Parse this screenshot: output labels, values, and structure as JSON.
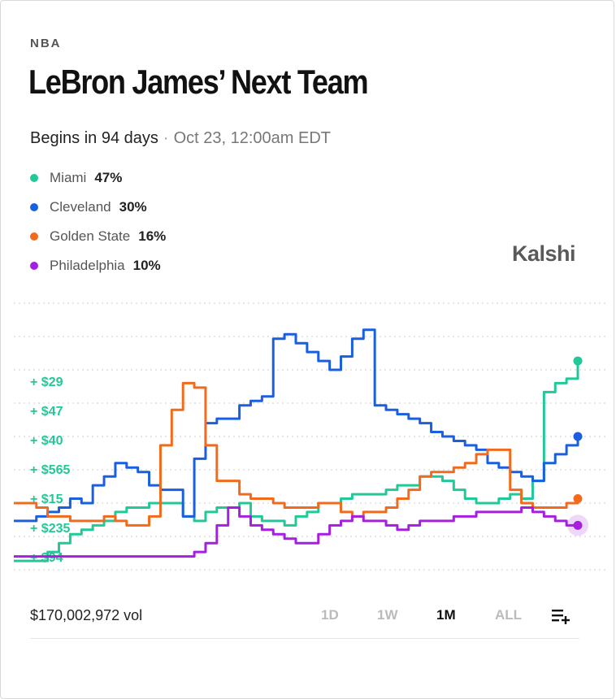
{
  "header": {
    "league": "NBA",
    "title": "LeBron James’ Next Team",
    "begins": "Begins in 94 days",
    "separator": "·",
    "date": "Oct 23, 12:00am EDT"
  },
  "legend": [
    {
      "name": "Miami",
      "pct": "47%",
      "color": "#20c997"
    },
    {
      "name": "Cleveland",
      "pct": "30%",
      "color": "#1a5fe0"
    },
    {
      "name": "Golden State",
      "pct": "16%",
      "color": "#f26b1d"
    },
    {
      "name": "Philadelphia",
      "pct": "10%",
      "color": "#a61fe0"
    }
  ],
  "brand": "Kalshi",
  "footer": {
    "volume": "$170,002,972 vol",
    "ranges": [
      "1D",
      "1W",
      "1M",
      "ALL"
    ],
    "active_range": "1M",
    "add_icon": "add-to-list-icon"
  },
  "chart_data": {
    "type": "line",
    "grid": true,
    "trade_labels": [
      "+ $29",
      "+ $47",
      "+ $40",
      "+ $565",
      "+ $15",
      "+ $235",
      "+ $94"
    ],
    "trade_label_color": "#20c997",
    "y_range": [
      0,
      60
    ],
    "x": [
      0,
      1,
      2,
      3,
      4,
      5,
      6,
      7,
      8,
      9,
      10,
      11,
      12,
      13,
      14,
      15,
      16,
      17,
      18,
      19,
      20,
      21,
      22,
      23,
      24,
      25,
      26,
      27,
      28,
      29,
      30,
      31,
      32,
      33,
      34,
      35,
      36,
      37,
      38,
      39,
      40,
      41,
      42,
      43,
      44,
      45,
      46,
      47,
      48,
      49,
      50
    ],
    "series": [
      {
        "name": "Miami",
        "color": "#20c997",
        "values": [
          2,
          2,
          2,
          4,
          6,
          8,
          9,
          10,
          11,
          13,
          14,
          14,
          15,
          15,
          15,
          12,
          11,
          13,
          14,
          14,
          15,
          12,
          11,
          11,
          10,
          12,
          13,
          15,
          15,
          16,
          17,
          17,
          17,
          18,
          19,
          19,
          21,
          21,
          20,
          18,
          16,
          15,
          15,
          16,
          17,
          16,
          20,
          40,
          42,
          43,
          47
        ]
      },
      {
        "name": "Cleveland",
        "color": "#1a5fe0",
        "values": [
          11,
          11,
          12,
          13,
          14,
          16,
          15,
          19,
          21,
          24,
          23,
          22,
          19,
          18,
          18,
          12,
          25,
          33,
          34,
          34,
          37,
          38,
          39,
          52,
          53,
          51,
          49,
          47,
          45,
          48,
          52,
          54,
          37,
          36,
          35,
          34,
          33,
          31,
          30,
          29,
          28,
          27,
          24,
          23,
          22,
          21,
          20,
          24,
          26,
          28,
          30
        ]
      },
      {
        "name": "Golden State",
        "color": "#f26b1d",
        "values": [
          15,
          15,
          14,
          12,
          12,
          11,
          11,
          11,
          12,
          11,
          10,
          10,
          12,
          28,
          36,
          42,
          41,
          28,
          20,
          20,
          17,
          16,
          16,
          15,
          14,
          14,
          14,
          15,
          15,
          13,
          12,
          13,
          13,
          14,
          16,
          18,
          21,
          22,
          22,
          23,
          24,
          26,
          27,
          27,
          18,
          15,
          14,
          14,
          14,
          15,
          16
        ]
      },
      {
        "name": "Philadelphia",
        "color": "#a61fe0",
        "values": [
          3,
          3,
          3,
          3,
          3,
          3,
          3,
          3,
          3,
          3,
          3,
          3,
          3,
          3,
          3,
          3,
          4,
          6,
          10,
          14,
          12,
          10,
          9,
          8,
          7,
          6,
          6,
          8,
          10,
          11,
          12,
          11,
          11,
          10,
          9,
          10,
          11,
          11,
          11,
          12,
          12,
          13,
          13,
          13,
          13,
          14,
          13,
          12,
          11,
          10,
          10
        ]
      }
    ]
  }
}
